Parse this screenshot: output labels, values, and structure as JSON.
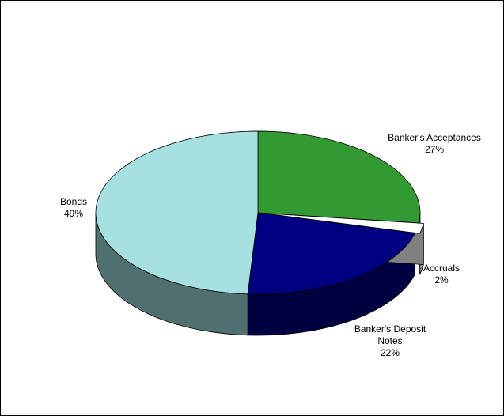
{
  "chart_data": {
    "type": "pie3d",
    "categories": [
      "Banker's Acceptances",
      "Accruals",
      "Banker's Deposit Notes",
      "Bonds"
    ],
    "values": [
      27,
      2,
      22,
      49
    ],
    "value_labels": [
      "27%",
      "2%",
      "22%",
      "49%"
    ],
    "colors": [
      "#339933",
      "#ffffff",
      "#000080",
      "#a6e0e0"
    ],
    "side_colors": [
      "#1f661f",
      "#808080",
      "#000040",
      "#507070"
    ]
  }
}
